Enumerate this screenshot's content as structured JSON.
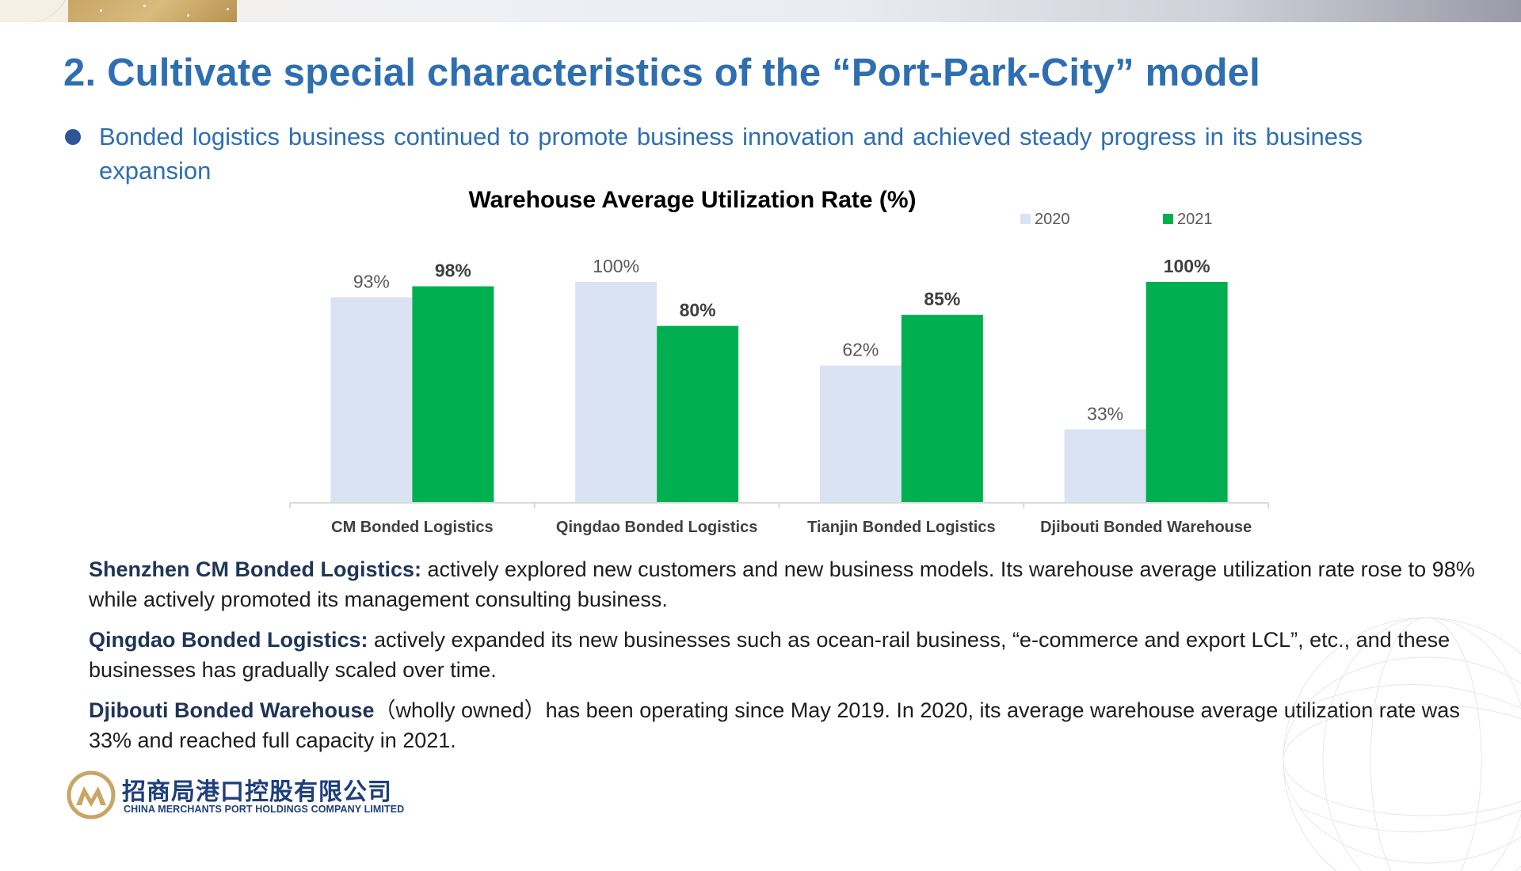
{
  "slide": {
    "title": "2. Cultivate special characteristics of the “Port-Park-City” model",
    "bullet": "Bonded logistics business continued to promote business innovation and achieved steady progress in its business expansion"
  },
  "chart_data": {
    "type": "bar",
    "title": "Warehouse Average Utilization Rate (%)",
    "categories": [
      "CM Bonded Logistics",
      "Qingdao Bonded Logistics",
      "Tianjin Bonded Logistics",
      "Djibouti Bonded Warehouse"
    ],
    "series": [
      {
        "name": "2020",
        "values": [
          93,
          100,
          62,
          33
        ],
        "labels": [
          "93%",
          "100%",
          "62%",
          "33%"
        ],
        "color": "#dae3f3"
      },
      {
        "name": "2021",
        "values": [
          98,
          80,
          85,
          100
        ],
        "labels": [
          "98%",
          "80%",
          "85%",
          "100%"
        ],
        "color": "#00b050"
      }
    ],
    "ylim": [
      0,
      100
    ],
    "legend_position": "top-right",
    "grid": false
  },
  "descriptions": [
    {
      "label": "Shenzhen CM Bonded Logistics:",
      "text": " actively explored new customers and new business models. Its warehouse average utilization rate rose to 98% while actively promoted its management consulting business."
    },
    {
      "label": "Qingdao Bonded Logistics:",
      "text": " actively expanded its new businesses such as ocean-rail business, “e-commerce and export LCL”, etc., and these businesses has gradually scaled over time."
    },
    {
      "label": "Djibouti Bonded Warehouse",
      "text": "（wholly owned）has been operating since May 2019. In 2020, its average warehouse average utilization rate was 33% and reached full capacity in 2021."
    }
  ],
  "logo": {
    "name_cn": "招商局港口控股有限公司",
    "name_en": "CHINA MERCHANTS PORT HOLDINGS COMPANY LIMITED",
    "colors": {
      "gold": "#c9a567",
      "navy": "#1e3f7a"
    }
  },
  "colors": {
    "title": "#2e6eb1",
    "bullet": "#2e5597"
  }
}
